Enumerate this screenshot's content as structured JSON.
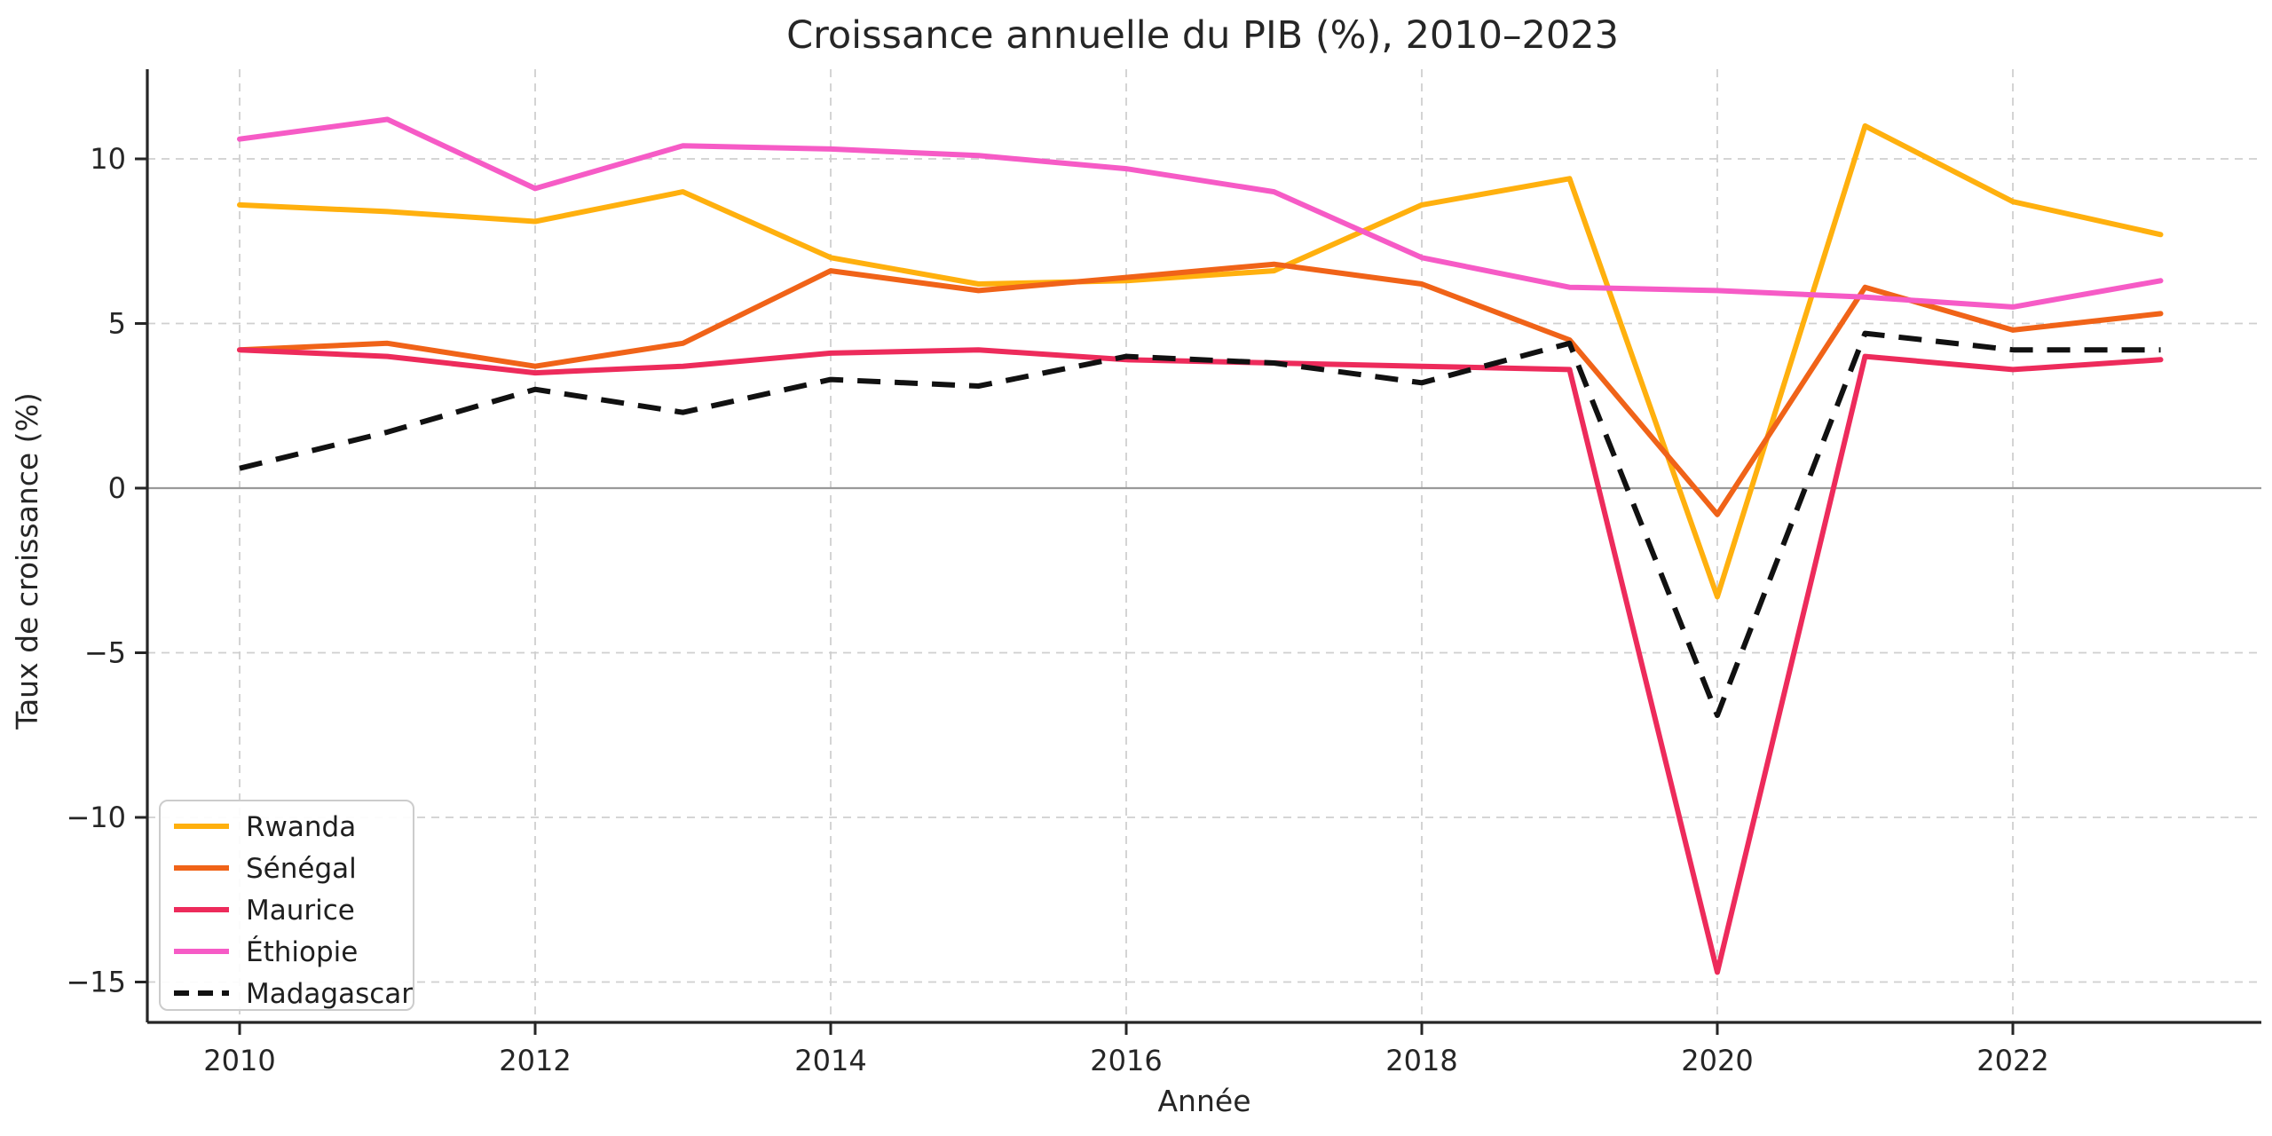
{
  "figure": {
    "title": "Croissance annuelle du PIB (%), 2010–2023",
    "x_axis_label": "Année",
    "y_axis_label": "Taux de croissance (%)"
  },
  "axes": {
    "x_tick_labels": [
      "2010",
      "2012",
      "2014",
      "2016",
      "2018",
      "2020",
      "2022"
    ],
    "x_tick_years": [
      2010,
      2012,
      2014,
      2016,
      2018,
      2020,
      2022
    ],
    "y_ticks": [
      {
        "value": 10,
        "label": "10"
      },
      {
        "value": 5,
        "label": "5"
      },
      {
        "value": 0,
        "label": "0"
      },
      {
        "value": -5,
        "label": "−5"
      },
      {
        "value": -10,
        "label": "−10"
      },
      {
        "value": -15,
        "label": "−15"
      }
    ],
    "grid": true,
    "zero_line": true
  },
  "colors": {
    "grid": "#cfcfcf",
    "zero_line": "#999999",
    "spine": "#262626",
    "text": "#262626",
    "legend_border": "#cccccc",
    "legend_background": "#ffffff"
  },
  "legend": {
    "position": "lower left",
    "items": [
      "Rwanda",
      "Sénégal",
      "Maurice",
      "Éthiopie",
      "Madagascar"
    ]
  },
  "chart_data": {
    "type": "line",
    "title": "Croissance annuelle du PIB (%), 2010–2023",
    "xlabel": "Année",
    "ylabel": "Taux de croissance (%)",
    "x": [
      2010,
      2011,
      2012,
      2013,
      2014,
      2015,
      2016,
      2017,
      2018,
      2019,
      2020,
      2021,
      2022,
      2023
    ],
    "xlim": [
      2009.35,
      2023.7
    ],
    "ylim": [
      -16.3,
      12.7
    ],
    "grid": true,
    "legend_position": "lower left",
    "series": [
      {
        "name": "Rwanda",
        "color": "#FFB00E",
        "style": "solid",
        "values": [
          8.6,
          8.4,
          8.1,
          9.0,
          7.0,
          6.2,
          6.3,
          6.6,
          8.6,
          9.4,
          -3.3,
          11.0,
          8.7,
          7.7
        ]
      },
      {
        "name": "Sénégal",
        "color": "#F06318",
        "style": "solid",
        "values": [
          4.2,
          4.4,
          3.7,
          4.4,
          6.6,
          6.0,
          6.4,
          6.8,
          6.2,
          4.5,
          -0.8,
          6.1,
          4.8,
          5.3
        ]
      },
      {
        "name": "Maurice",
        "color": "#ED2B5B",
        "style": "solid",
        "values": [
          4.2,
          4.0,
          3.5,
          3.7,
          4.1,
          4.2,
          3.9,
          3.8,
          3.7,
          3.6,
          -14.7,
          4.0,
          3.6,
          3.9
        ]
      },
      {
        "name": "Éthiopie",
        "color": "#F65BC6",
        "style": "solid",
        "values": [
          10.6,
          11.2,
          9.1,
          10.4,
          10.3,
          10.1,
          9.7,
          9.0,
          7.0,
          6.1,
          6.0,
          5.8,
          5.5,
          6.3
        ]
      },
      {
        "name": "Madagascar",
        "color": "#111111",
        "style": "dashed",
        "values": [
          0.6,
          1.7,
          3.0,
          2.3,
          3.3,
          3.1,
          4.0,
          3.8,
          3.2,
          4.4,
          -6.9,
          4.7,
          4.2,
          4.2
        ]
      }
    ]
  }
}
